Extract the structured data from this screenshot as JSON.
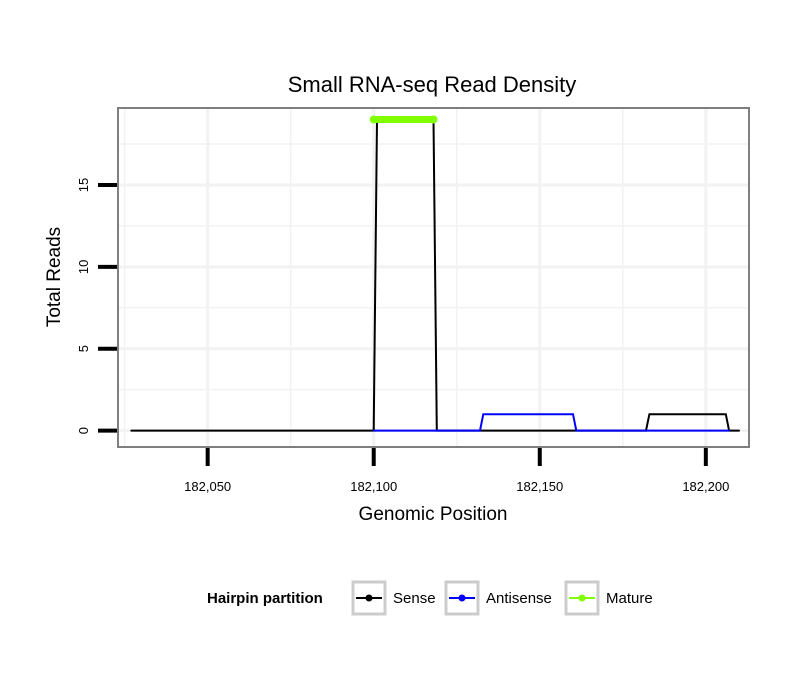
{
  "chart_data": {
    "type": "line",
    "title": "Small RNA-seq Read Density",
    "xlabel": "Genomic Position",
    "ylabel": "Total Reads",
    "xlim": [
      182023,
      182213
    ],
    "ylim": [
      -1,
      19.7
    ],
    "x_ticks": [
      182050,
      182100,
      182150,
      182200
    ],
    "x_tick_labels": [
      "182,050",
      "182,100",
      "182,150",
      "182,200"
    ],
    "y_ticks": [
      0,
      5,
      10,
      15
    ],
    "y_tick_labels": [
      "0",
      "5",
      "10",
      "15"
    ],
    "grid": true,
    "legend": {
      "title": "Hairpin partition",
      "position": "bottom"
    },
    "series": [
      {
        "name": "Sense",
        "color": "#000000",
        "x": [
          182027,
          182100,
          182101,
          182118,
          182119,
          182182,
          182183,
          182206,
          182207,
          182210
        ],
        "y": [
          0,
          0,
          19,
          19,
          0,
          0,
          1,
          1,
          0,
          0
        ]
      },
      {
        "name": "Antisense",
        "color": "#0000ff",
        "x": [
          182100,
          182132,
          182133,
          182160,
          182161,
          182183,
          182207
        ],
        "y": [
          0,
          0,
          1,
          1,
          0,
          0,
          0
        ]
      },
      {
        "name": "Mature",
        "color": "#7fff00",
        "x": [
          182100,
          182118
        ],
        "y": [
          19,
          19
        ]
      }
    ]
  }
}
